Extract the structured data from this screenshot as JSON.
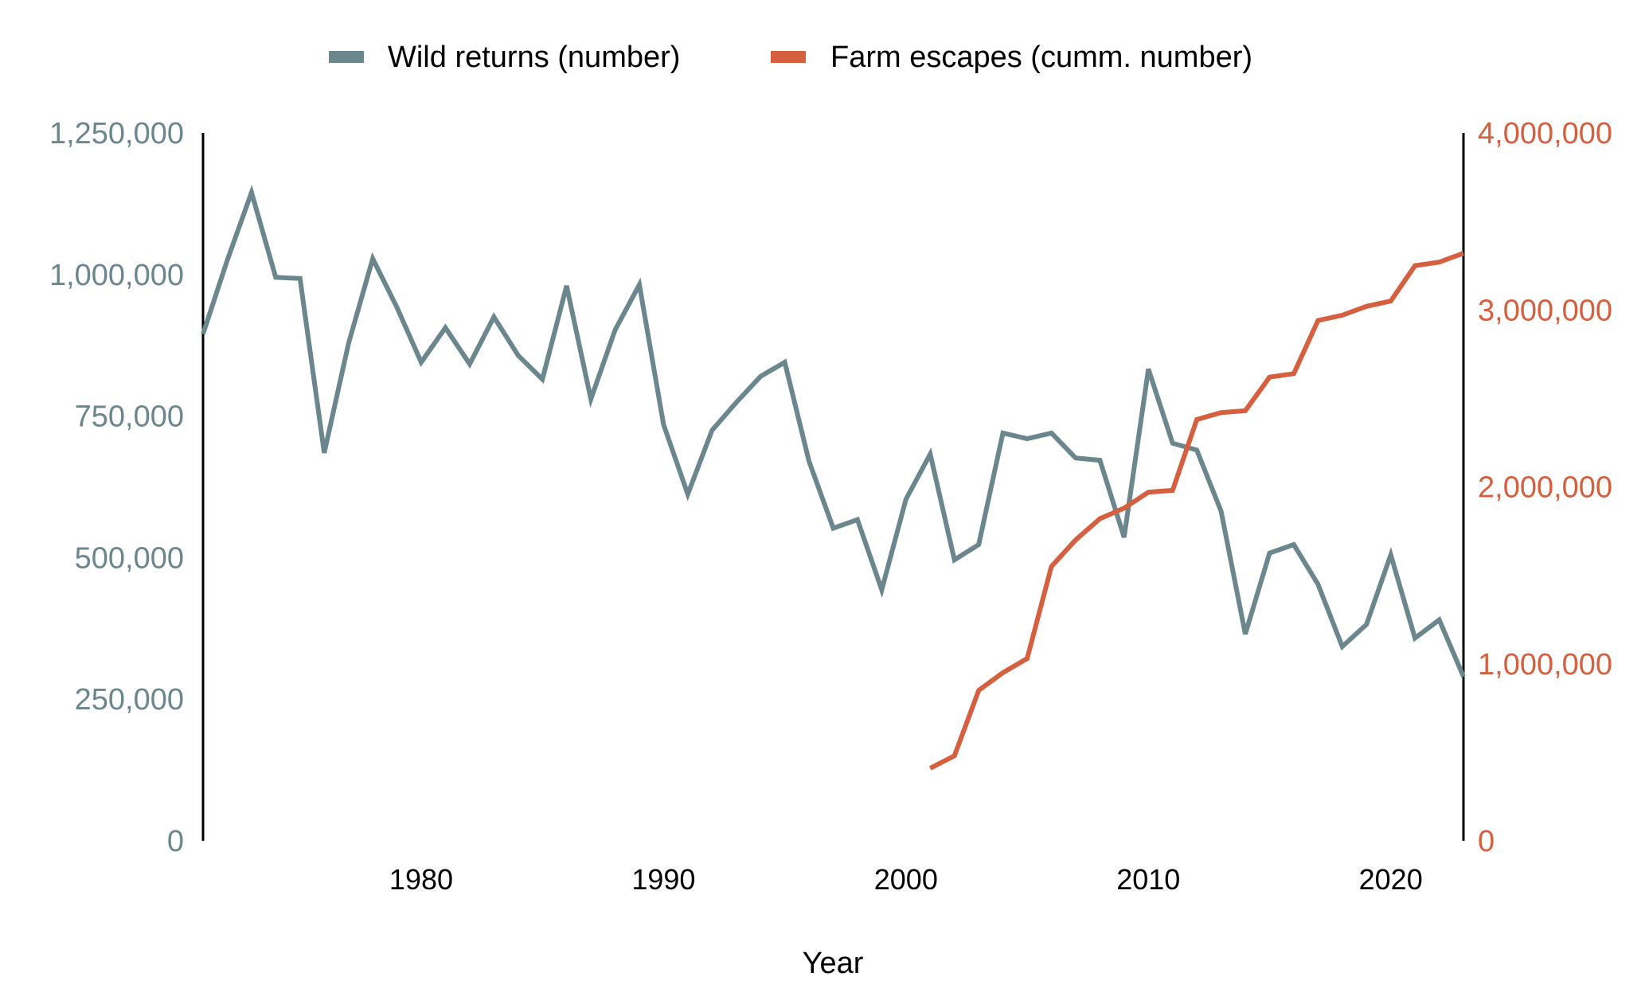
{
  "chart_data": {
    "type": "line",
    "xlabel": "Year",
    "x_ticks": [
      1980,
      1990,
      2000,
      2010,
      2020
    ],
    "xlim": [
      1971,
      2023
    ],
    "legend_position": "top-center",
    "grid": false,
    "y_left": {
      "lim": [
        0,
        1250000
      ],
      "ticks": [
        0,
        250000,
        500000,
        750000,
        1000000,
        1250000
      ],
      "tick_labels": [
        "0",
        "250,000",
        "500,000",
        "750,000",
        "1,000,000",
        "1,250,000"
      ],
      "color": "#6b868d"
    },
    "y_right": {
      "lim": [
        0,
        4000000
      ],
      "ticks": [
        0,
        1000000,
        2000000,
        3000000,
        4000000
      ],
      "tick_labels": [
        "0",
        "1,000,000",
        "2,000,000",
        "3,000,000",
        "4,000,000"
      ],
      "color": "#d4603f"
    },
    "series": [
      {
        "name": "Wild returns (number)",
        "axis": "left",
        "color": "#6b868d",
        "x": [
          1971,
          1972,
          1973,
          1974,
          1975,
          1976,
          1977,
          1978,
          1979,
          1980,
          1981,
          1982,
          1983,
          1984,
          1985,
          1986,
          1987,
          1988,
          1989,
          1990,
          1991,
          1992,
          1993,
          1994,
          1995,
          1996,
          1997,
          1998,
          1999,
          2000,
          2001,
          2002,
          2003,
          2004,
          2005,
          2006,
          2007,
          2008,
          2009,
          2010,
          2011,
          2012,
          2013,
          2014,
          2015,
          2016,
          2017,
          2018,
          2019,
          2020,
          2021,
          2022,
          2023
        ],
        "values": [
          895000,
          1025000,
          1145000,
          995000,
          993000,
          685000,
          878000,
          1028000,
          942000,
          845000,
          906000,
          842000,
          925000,
          857000,
          815000,
          980000,
          780000,
          902000,
          982000,
          735000,
          612000,
          725000,
          774000,
          820000,
          845000,
          670000,
          552000,
          567000,
          443000,
          603000,
          683000,
          496000,
          523000,
          720000,
          710000,
          720000,
          676000,
          672000,
          536000,
          833000,
          702000,
          690000,
          582000,
          365000,
          508000,
          523000,
          453000,
          343000,
          382000,
          505000,
          358000,
          390000,
          290000
        ]
      },
      {
        "name": "Farm escapes (cumm. number)",
        "axis": "right",
        "color": "#d4603f",
        "x": [
          2001,
          2002,
          2003,
          2004,
          2005,
          2006,
          2007,
          2008,
          2009,
          2010,
          2011,
          2012,
          2013,
          2014,
          2015,
          2016,
          2017,
          2018,
          2019,
          2020,
          2021,
          2022,
          2023
        ],
        "values": [
          410000,
          480000,
          850000,
          950000,
          1030000,
          1550000,
          1700000,
          1820000,
          1880000,
          1970000,
          1980000,
          2380000,
          2420000,
          2430000,
          2620000,
          2640000,
          2940000,
          2970000,
          3020000,
          3050000,
          3250000,
          3270000,
          3320000
        ]
      }
    ]
  }
}
